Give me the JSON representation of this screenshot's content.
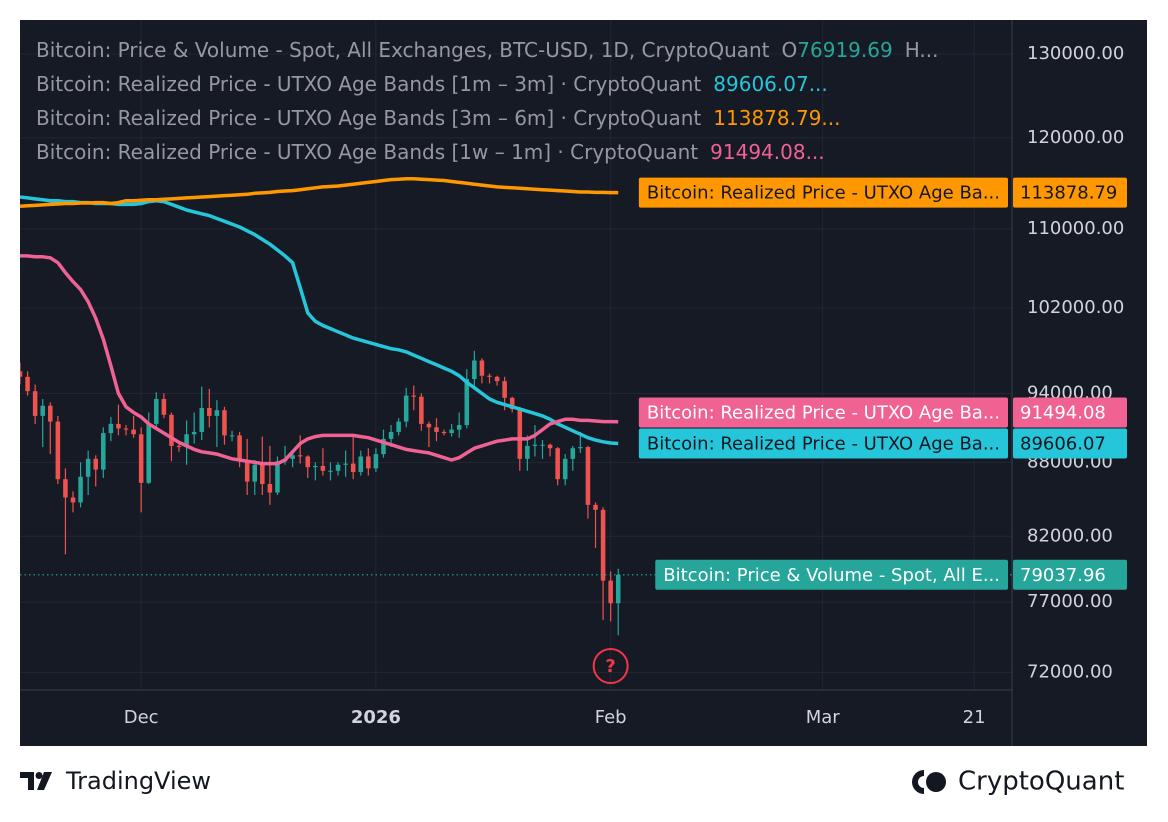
{
  "chart_data": {
    "type": "candlestick",
    "log_scale": true,
    "grid": true,
    "up_color": "#26a69a",
    "down_color": "#ef5350",
    "price_name": "Bitcoin: Price & Volume - Spot, All Exchanges, BTC-USD, 1D, CryptoQuant",
    "price_open_prefix": "O",
    "price_more": "H...",
    "price_tag_label": "Bitcoin: Price & Volume - Spot, All E...",
    "event_marker": {
      "label": "?",
      "x": "2026-02-01"
    },
    "xlim": [
      "2025-11-15",
      "2026-03-26"
    ],
    "xticks": [
      {
        "value": "2025-12-01",
        "label": "Dec"
      },
      {
        "value": "2026-01-01",
        "label": "2026"
      },
      {
        "value": "2026-02-01",
        "label": "Feb"
      },
      {
        "value": "2026-03-01",
        "label": "Mar"
      },
      {
        "value": "2026-03-21",
        "label": "21"
      }
    ],
    "ylim": [
      70800,
      134300
    ],
    "yticks": [
      {
        "value": 130000,
        "label": "130000.00"
      },
      {
        "value": 120000,
        "label": "120000.00"
      },
      {
        "value": 110000,
        "label": "110000.00"
      },
      {
        "value": 102000,
        "label": "102000.00"
      },
      {
        "value": 94000,
        "label": "94000.00"
      },
      {
        "value": 88000,
        "label": "88000.00"
      },
      {
        "value": 82000,
        "label": "82000.00"
      },
      {
        "value": 77000,
        "label": "77000.00"
      },
      {
        "value": 72000,
        "label": "72000.00"
      }
    ],
    "x": [
      "2025-11-15",
      "2025-11-16",
      "2025-11-17",
      "2025-11-18",
      "2025-11-19",
      "2025-11-20",
      "2025-11-21",
      "2025-11-22",
      "2025-11-23",
      "2025-11-24",
      "2025-11-25",
      "2025-11-26",
      "2025-11-27",
      "2025-11-28",
      "2025-11-29",
      "2025-11-30",
      "2025-12-01",
      "2025-12-02",
      "2025-12-03",
      "2025-12-04",
      "2025-12-05",
      "2025-12-06",
      "2025-12-07",
      "2025-12-08",
      "2025-12-09",
      "2025-12-10",
      "2025-12-11",
      "2025-12-12",
      "2025-12-13",
      "2025-12-14",
      "2025-12-15",
      "2025-12-16",
      "2025-12-17",
      "2025-12-18",
      "2025-12-19",
      "2025-12-20",
      "2025-12-21",
      "2025-12-22",
      "2025-12-23",
      "2025-12-24",
      "2025-12-25",
      "2025-12-26",
      "2025-12-27",
      "2025-12-28",
      "2025-12-29",
      "2025-12-30",
      "2025-12-31",
      "2026-01-01",
      "2026-01-02",
      "2026-01-03",
      "2026-01-04",
      "2026-01-05",
      "2026-01-06",
      "2026-01-07",
      "2026-01-08",
      "2026-01-09",
      "2026-01-10",
      "2026-01-11",
      "2026-01-12",
      "2026-01-13",
      "2026-01-14",
      "2026-01-15",
      "2026-01-16",
      "2026-01-17",
      "2026-01-18",
      "2026-01-19",
      "2026-01-20",
      "2026-01-21",
      "2026-01-22",
      "2026-01-23",
      "2026-01-24",
      "2026-01-25",
      "2026-01-26",
      "2026-01-27",
      "2026-01-28",
      "2026-01-29",
      "2026-01-30",
      "2026-01-31",
      "2026-02-01",
      "2026-02-02"
    ],
    "open": [
      96000,
      95500,
      94200,
      92000,
      92900,
      91500,
      86600,
      85100,
      84700,
      86800,
      88300,
      87400,
      90500,
      91300,
      90900,
      90800,
      90400,
      86300,
      91300,
      93500,
      92100,
      89400,
      89300,
      90400,
      90600,
      92700,
      92000,
      92500,
      90300,
      90300,
      88200,
      86400,
      87800,
      86200,
      85500,
      88100,
      88300,
      88600,
      88500,
      87600,
      87700,
      87300,
      87300,
      87800,
      87900,
      87200,
      88500,
      87500,
      88700,
      90000,
      90600,
      91500,
      93800,
      93700,
      91300,
      91000,
      90600,
      90500,
      90800,
      91200,
      95300,
      97000,
      95600,
      95500,
      95100,
      93600,
      92600,
      88300,
      89400,
      89500,
      89500,
      89200,
      86600,
      88300,
      89200,
      89300,
      84500,
      84100,
      78600,
      76919.69
    ],
    "high": [
      96800,
      96000,
      94800,
      93500,
      93200,
      92000,
      87500,
      85600,
      88000,
      89000,
      88600,
      91000,
      91900,
      93000,
      91200,
      92000,
      91000,
      92300,
      94100,
      94000,
      92300,
      89800,
      91600,
      92300,
      94600,
      94400,
      93400,
      92800,
      90700,
      90600,
      90000,
      88200,
      90200,
      89400,
      88500,
      89400,
      88900,
      90300,
      88600,
      88000,
      89200,
      88000,
      88000,
      89000,
      90400,
      89000,
      89200,
      89200,
      90800,
      91200,
      91800,
      94500,
      94700,
      94000,
      91500,
      91800,
      90800,
      91300,
      92300,
      96200,
      97900,
      97200,
      95800,
      95600,
      95500,
      93700,
      92800,
      90300,
      91200,
      89900,
      89600,
      89300,
      88700,
      89400,
      90600,
      89400,
      84700,
      84300,
      79300,
      79500
    ],
    "low": [
      94800,
      93800,
      91300,
      89300,
      88700,
      86200,
      80600,
      83900,
      84300,
      85300,
      86000,
      86700,
      89800,
      90300,
      90300,
      90100,
      83900,
      86200,
      90900,
      91800,
      88100,
      88900,
      87800,
      89600,
      89900,
      91000,
      89300,
      89500,
      89800,
      87600,
      85300,
      85300,
      85300,
      84500,
      85300,
      87800,
      87600,
      87900,
      86700,
      86500,
      86900,
      86500,
      86900,
      86800,
      86600,
      86900,
      86900,
      87200,
      88400,
      89300,
      90300,
      91000,
      92500,
      90700,
      89300,
      89800,
      90300,
      90200,
      90100,
      90900,
      94600,
      94900,
      94900,
      94700,
      92500,
      92300,
      87300,
      87300,
      88500,
      88300,
      88500,
      86100,
      86100,
      87300,
      88800,
      83400,
      81100,
      75700,
      75600,
      74600
    ],
    "close": [
      95500,
      94200,
      92000,
      92900,
      91500,
      86600,
      85100,
      84700,
      86800,
      88300,
      87400,
      90500,
      91300,
      90900,
      90800,
      90400,
      86300,
      91300,
      93500,
      92100,
      89400,
      89300,
      90400,
      90600,
      92700,
      92000,
      92500,
      90300,
      90300,
      88200,
      86400,
      87800,
      86200,
      85500,
      88100,
      88300,
      88600,
      88500,
      87600,
      87700,
      87300,
      87300,
      87800,
      87900,
      87200,
      88500,
      87500,
      88700,
      90000,
      90600,
      91500,
      93800,
      93700,
      91300,
      91000,
      90600,
      90500,
      90800,
      91200,
      95300,
      97000,
      95600,
      95500,
      95100,
      93600,
      92600,
      88300,
      89400,
      89500,
      89500,
      89200,
      86600,
      88300,
      89200,
      89300,
      84500,
      84100,
      78600,
      76919.69,
      79037.96
    ],
    "series": [
      {
        "name": "Bitcoin: Realized Price - UTXO Age Bands [1m – 3m] · CryptoQuant",
        "legend_value": "89606.07...",
        "tag_label": "Bitcoin: Realized Price - UTXO Age Ba...",
        "color": "#26c6da",
        "values": [
          113400,
          113300,
          113200,
          113100,
          113000,
          113000,
          112900,
          112900,
          112800,
          112800,
          112700,
          112700,
          112700,
          112600,
          112600,
          112600,
          112700,
          112900,
          113000,
          112900,
          112600,
          112300,
          112000,
          111800,
          111600,
          111400,
          111100,
          110800,
          110500,
          110200,
          109800,
          109400,
          108900,
          108400,
          107800,
          107200,
          106500,
          104000,
          101500,
          100700,
          100300,
          100000,
          99700,
          99400,
          99100,
          98900,
          98700,
          98500,
          98300,
          98100,
          98000,
          97800,
          97500,
          97200,
          96900,
          96600,
          96300,
          96000,
          95600,
          95000,
          94500,
          94000,
          93500,
          93200,
          93000,
          92800,
          92600,
          92400,
          92200,
          92000,
          91700,
          91300,
          91000,
          90700,
          90400,
          90100,
          89900,
          89750,
          89650,
          89606.07
        ]
      },
      {
        "name": "Bitcoin: Realized Price - UTXO Age Bands [3m – 6m] · CryptoQuant",
        "legend_value": "113878.79...",
        "tag_label": "Bitcoin: Realized Price - UTXO Age Ba...",
        "color": "#ff9800",
        "values": [
          112400,
          112450,
          112500,
          112550,
          112600,
          112650,
          112700,
          112700,
          112750,
          112750,
          112800,
          112800,
          112700,
          112800,
          113000,
          113000,
          113050,
          113100,
          113100,
          113150,
          113200,
          113250,
          113300,
          113350,
          113400,
          113450,
          113500,
          113550,
          113600,
          113650,
          113700,
          113800,
          113850,
          113900,
          114000,
          114050,
          114100,
          114200,
          114300,
          114400,
          114500,
          114550,
          114600,
          114700,
          114800,
          114900,
          115000,
          115100,
          115200,
          115300,
          115350,
          115400,
          115400,
          115350,
          115300,
          115250,
          115200,
          115100,
          115000,
          114900,
          114800,
          114700,
          114600,
          114500,
          114450,
          114400,
          114350,
          114300,
          114250,
          114200,
          114150,
          114100,
          114050,
          114000,
          113950,
          113950,
          113900,
          113900,
          113880,
          113878.79
        ]
      },
      {
        "name": "Bitcoin: Realized Price - UTXO Age Bands [1w – 1m] · CryptoQuant",
        "legend_value": "91494.08...",
        "tag_label": "Bitcoin: Realized Price - UTXO Age Ba...",
        "color": "#f06292",
        "values": [
          107200,
          107200,
          107100,
          107100,
          107000,
          106500,
          105500,
          104600,
          103800,
          102600,
          101000,
          99000,
          96500,
          94000,
          92800,
          92300,
          91900,
          91300,
          90900,
          90500,
          90100,
          89700,
          89400,
          89100,
          88900,
          88800,
          88700,
          88500,
          88300,
          88200,
          88100,
          88000,
          87900,
          87900,
          87900,
          88200,
          88900,
          89600,
          90000,
          90200,
          90300,
          90300,
          90300,
          90300,
          90300,
          90200,
          90100,
          89900,
          89700,
          89500,
          89300,
          89100,
          89000,
          88900,
          88800,
          88600,
          88400,
          88200,
          88400,
          88800,
          89200,
          89400,
          89600,
          89800,
          89900,
          90000,
          90000,
          90000,
          90300,
          90800,
          91300,
          91500,
          91700,
          91700,
          91600,
          91600,
          91550,
          91500,
          91500,
          91494.08
        ]
      }
    ]
  },
  "branding": {
    "left": "TradingView",
    "right": "CryptoQuant"
  }
}
